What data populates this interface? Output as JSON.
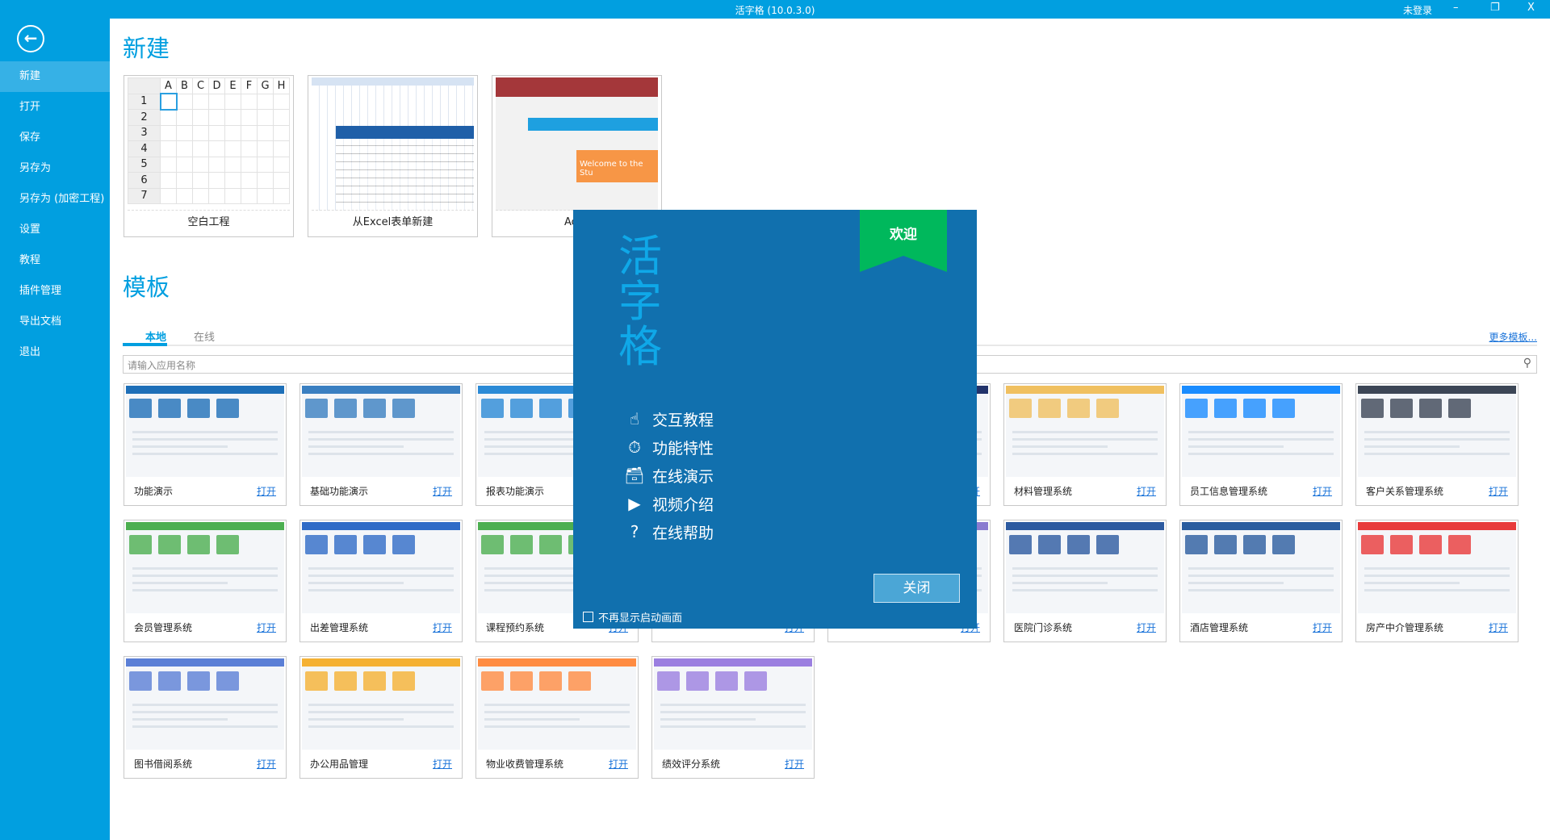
{
  "titlebar": {
    "title": "活字格 (10.0.3.0)",
    "login": "未登录",
    "minimize": "–",
    "restore": "❐",
    "close": "X"
  },
  "sidebar": {
    "back_icon": "←",
    "items": [
      "新建",
      "打开",
      "保存",
      "另存为",
      "另存为 (加密工程)",
      "设置",
      "教程",
      "插件管理",
      "导出文档",
      "退出"
    ],
    "active": 0
  },
  "new_section": {
    "title": "新建",
    "cards": [
      {
        "label": "空白工程",
        "columns": [
          "A",
          "B",
          "C",
          "D",
          "E",
          "F",
          "G",
          "H"
        ],
        "rows": [
          "1",
          "2",
          "3",
          "4",
          "5",
          "6",
          "7"
        ]
      },
      {
        "label": "从Excel表单新建"
      },
      {
        "label": "Acce",
        "overlay_text": "Welcome to the Stu"
      }
    ]
  },
  "template_section": {
    "title": "模板",
    "tabs": [
      "本地",
      "在线"
    ],
    "active_tab": 0,
    "more_link": "更多模板...",
    "search_placeholder": "请输入应用名称",
    "open_label": "打开",
    "cards": [
      {
        "name": "功能演示",
        "color": "#1e6fb8"
      },
      {
        "name": "基础功能演示",
        "color": "#3a7fc1"
      },
      {
        "name": "报表功能演示",
        "color": "#2b8ad6"
      },
      {
        "name": "",
        "color": "#1e4f9a"
      },
      {
        "name": "",
        "color": "#22336b"
      },
      {
        "name": "材料管理系统",
        "color": "#f0c060"
      },
      {
        "name": "员工信息管理系统",
        "color": "#1a8cff"
      },
      {
        "name": "客户关系管理系统",
        "color": "#3c4656"
      },
      {
        "name": "会员管理系统",
        "color": "#4caf50"
      },
      {
        "name": "出差管理系统",
        "color": "#2f6bc7"
      },
      {
        "name": "课程预约系统",
        "color": "#4caf50"
      },
      {
        "name": "",
        "color": "#8a7bd0"
      },
      {
        "name": "",
        "color": "#8a7bd0"
      },
      {
        "name": "医院门诊系统",
        "color": "#2c5aa0"
      },
      {
        "name": "酒店管理系统",
        "color": "#2a5d9f"
      },
      {
        "name": "房产中介管理系统",
        "color": "#e83a3a"
      },
      {
        "name": "图书借阅系统",
        "color": "#5b7fd6"
      },
      {
        "name": "办公用品管理",
        "color": "#f5b133"
      },
      {
        "name": "物业收费管理系统",
        "color": "#ff8c42"
      },
      {
        "name": "绩效评分系统",
        "color": "#9b7fe0"
      }
    ]
  },
  "dialog": {
    "ribbon": "欢迎",
    "logo": "活字格",
    "items": [
      {
        "icon": "hand-pointer-icon",
        "glyph": "☝",
        "label": "交互教程"
      },
      {
        "icon": "stopwatch-icon",
        "glyph": "⏱",
        "label": "功能特性"
      },
      {
        "icon": "drawer-icon",
        "glyph": "🗃",
        "label": "在线演示"
      },
      {
        "icon": "film-icon",
        "glyph": "▶",
        "label": "视频介绍"
      },
      {
        "icon": "help-icon",
        "glyph": "?",
        "label": "在线帮助"
      }
    ],
    "close": "关闭",
    "dont_show": "不再显示启动画面",
    "dont_show_checked": false
  }
}
